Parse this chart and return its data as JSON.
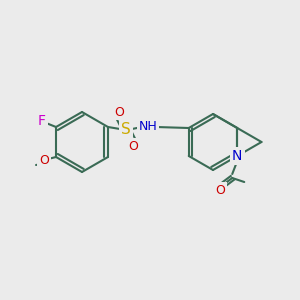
{
  "bg_color": "#ebebeb",
  "bond_color": "#3a6b55",
  "bond_width": 1.5,
  "atom_colors": {
    "C": "#3a6b55",
    "N": "#0000cc",
    "O": "#cc0000",
    "F": "#cc00cc",
    "S": "#ccaa00",
    "H": "#888888"
  },
  "font_size": 9,
  "font_size_small": 8
}
